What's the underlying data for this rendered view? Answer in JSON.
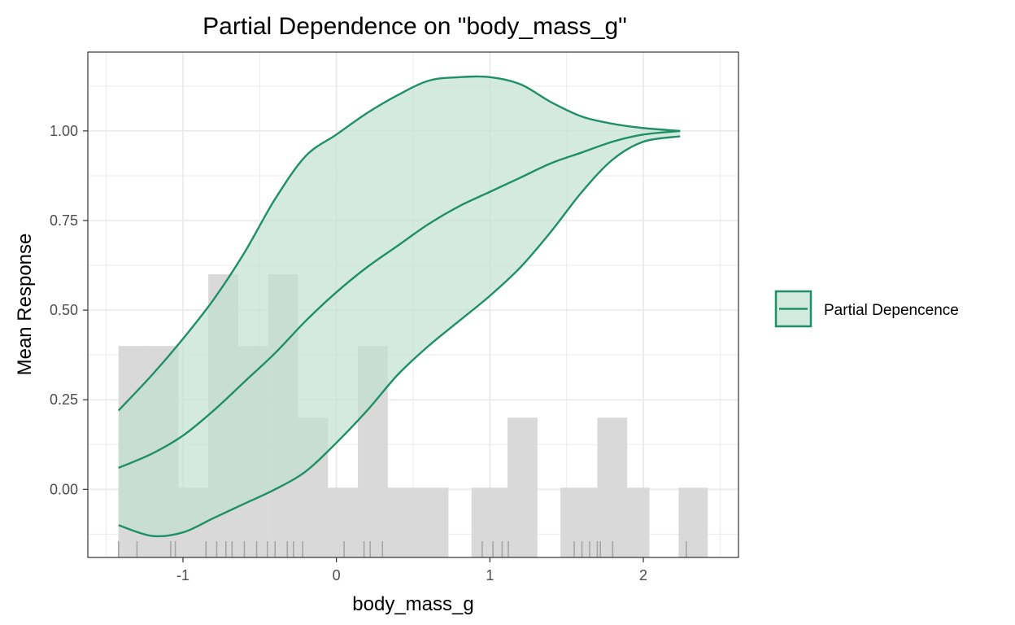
{
  "chart_data": {
    "type": "line",
    "title": "Partial Dependence on \"body_mass_g\"",
    "xlabel": "body_mass_g",
    "ylabel": "Mean Response",
    "xlim": [
      -1.62,
      2.62
    ],
    "ylim": [
      -0.19,
      1.22
    ],
    "x_ticks": [
      -1,
      0,
      1,
      2
    ],
    "x_tick_labels": [
      "-1",
      "0",
      "1",
      "2"
    ],
    "y_ticks": [
      0,
      0.25,
      0.5,
      0.75,
      1.0
    ],
    "y_tick_labels": [
      "0.00",
      "0.25",
      "0.50",
      "0.75",
      "1.00"
    ],
    "grid": true,
    "legend": {
      "position": "right",
      "entries": [
        "Partial Depencence"
      ]
    },
    "colors": {
      "line": "#1f8f68",
      "ribbon": "#d2e9df",
      "histogram": "#d9d9d9",
      "rug": "#a6a6a6"
    },
    "series": [
      {
        "name": "Partial Depencence",
        "x": [
          -1.42,
          -1.2,
          -1.0,
          -0.8,
          -0.6,
          -0.4,
          -0.2,
          0.0,
          0.2,
          0.4,
          0.6,
          0.8,
          1.0,
          1.2,
          1.4,
          1.6,
          1.8,
          2.0,
          2.24
        ],
        "y": [
          0.06,
          0.1,
          0.15,
          0.22,
          0.3,
          0.38,
          0.47,
          0.55,
          0.62,
          0.68,
          0.74,
          0.79,
          0.83,
          0.87,
          0.91,
          0.94,
          0.97,
          0.99,
          1.0
        ],
        "lower": [
          -0.1,
          -0.13,
          -0.12,
          -0.08,
          -0.04,
          0.0,
          0.05,
          0.13,
          0.22,
          0.32,
          0.4,
          0.47,
          0.54,
          0.62,
          0.72,
          0.83,
          0.92,
          0.97,
          0.985
        ],
        "upper": [
          0.22,
          0.32,
          0.42,
          0.53,
          0.66,
          0.81,
          0.93,
          0.99,
          1.05,
          1.1,
          1.14,
          1.15,
          1.15,
          1.13,
          1.08,
          1.04,
          1.02,
          1.008,
          1.0
        ]
      }
    ],
    "histogram": {
      "bin_width": 0.195,
      "bin_starts": [
        -1.42,
        -1.225,
        -1.03,
        -0.835,
        -0.64,
        -0.445,
        -0.25,
        -0.055,
        0.14,
        0.335,
        0.53,
        0.725,
        0.92,
        1.115,
        1.31,
        1.505,
        1.7,
        1.895,
        2.09,
        2.285
      ],
      "heights": [
        0.4,
        0.4,
        0.0,
        0.6,
        0.4,
        0.6,
        0.2,
        0.0,
        0.4,
        0.0,
        0.0,
        0.0,
        0.0,
        0.2,
        0.0,
        0.0,
        0.2,
        0.0,
        0.0,
        0.0
      ],
      "baseline_bins": [
        [
          -1.42,
          -1.03
        ],
        [
          -1.03,
          -0.445
        ],
        [
          -0.25,
          0.73
        ],
        [
          0.88,
          1.25
        ],
        [
          1.46,
          2.04
        ],
        [
          2.23,
          2.42
        ]
      ]
    },
    "rug": [
      -1.42,
      -1.3,
      -1.08,
      -1.05,
      -0.85,
      -0.78,
      -0.72,
      -0.68,
      -0.6,
      -0.52,
      -0.45,
      -0.4,
      -0.32,
      -0.28,
      -0.22,
      0.05,
      0.18,
      0.22,
      0.3,
      0.95,
      1.02,
      1.08,
      1.12,
      1.55,
      1.6,
      1.65,
      1.7,
      1.72,
      1.8,
      2.28
    ]
  }
}
